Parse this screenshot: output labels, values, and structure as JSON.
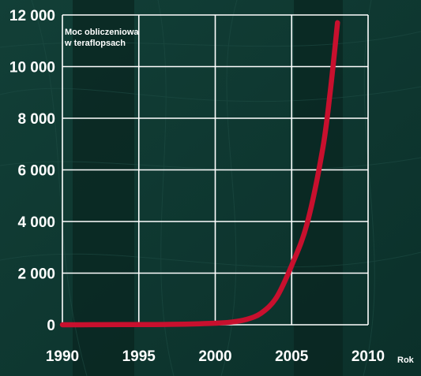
{
  "chart_data": {
    "type": "line",
    "ylabel_lines": [
      "Moc obliczeniowa",
      "w teraflopsach"
    ],
    "xlabel": "Rok",
    "x": [
      1990,
      1992,
      1994,
      1996,
      1997,
      1998,
      1999,
      2000,
      2001,
      2002,
      2003,
      2004,
      2005,
      2006,
      2007,
      2007.5,
      2008
    ],
    "y": [
      0,
      2,
      5,
      10,
      15,
      25,
      40,
      60,
      100,
      200,
      450,
      1050,
      2300,
      3900,
      6700,
      8900,
      11700
    ],
    "xlim": [
      1990,
      2010
    ],
    "ylim": [
      0,
      12000
    ],
    "xticks": [
      1990,
      1995,
      2000,
      2005,
      2010
    ],
    "xtick_labels": [
      "1990",
      "1995",
      "2000",
      "2005",
      "2010"
    ],
    "yticks": [
      0,
      2000,
      4000,
      6000,
      8000,
      10000,
      12000
    ],
    "ytick_labels": [
      "0",
      "2 000",
      "4 000",
      "6 000",
      "8 000",
      "10 000",
      "12 000"
    ],
    "grid": true,
    "colors": {
      "line": "#c8102e",
      "grid": "#ffffff",
      "background": "#0e3a33",
      "text": "#ffffff"
    }
  }
}
